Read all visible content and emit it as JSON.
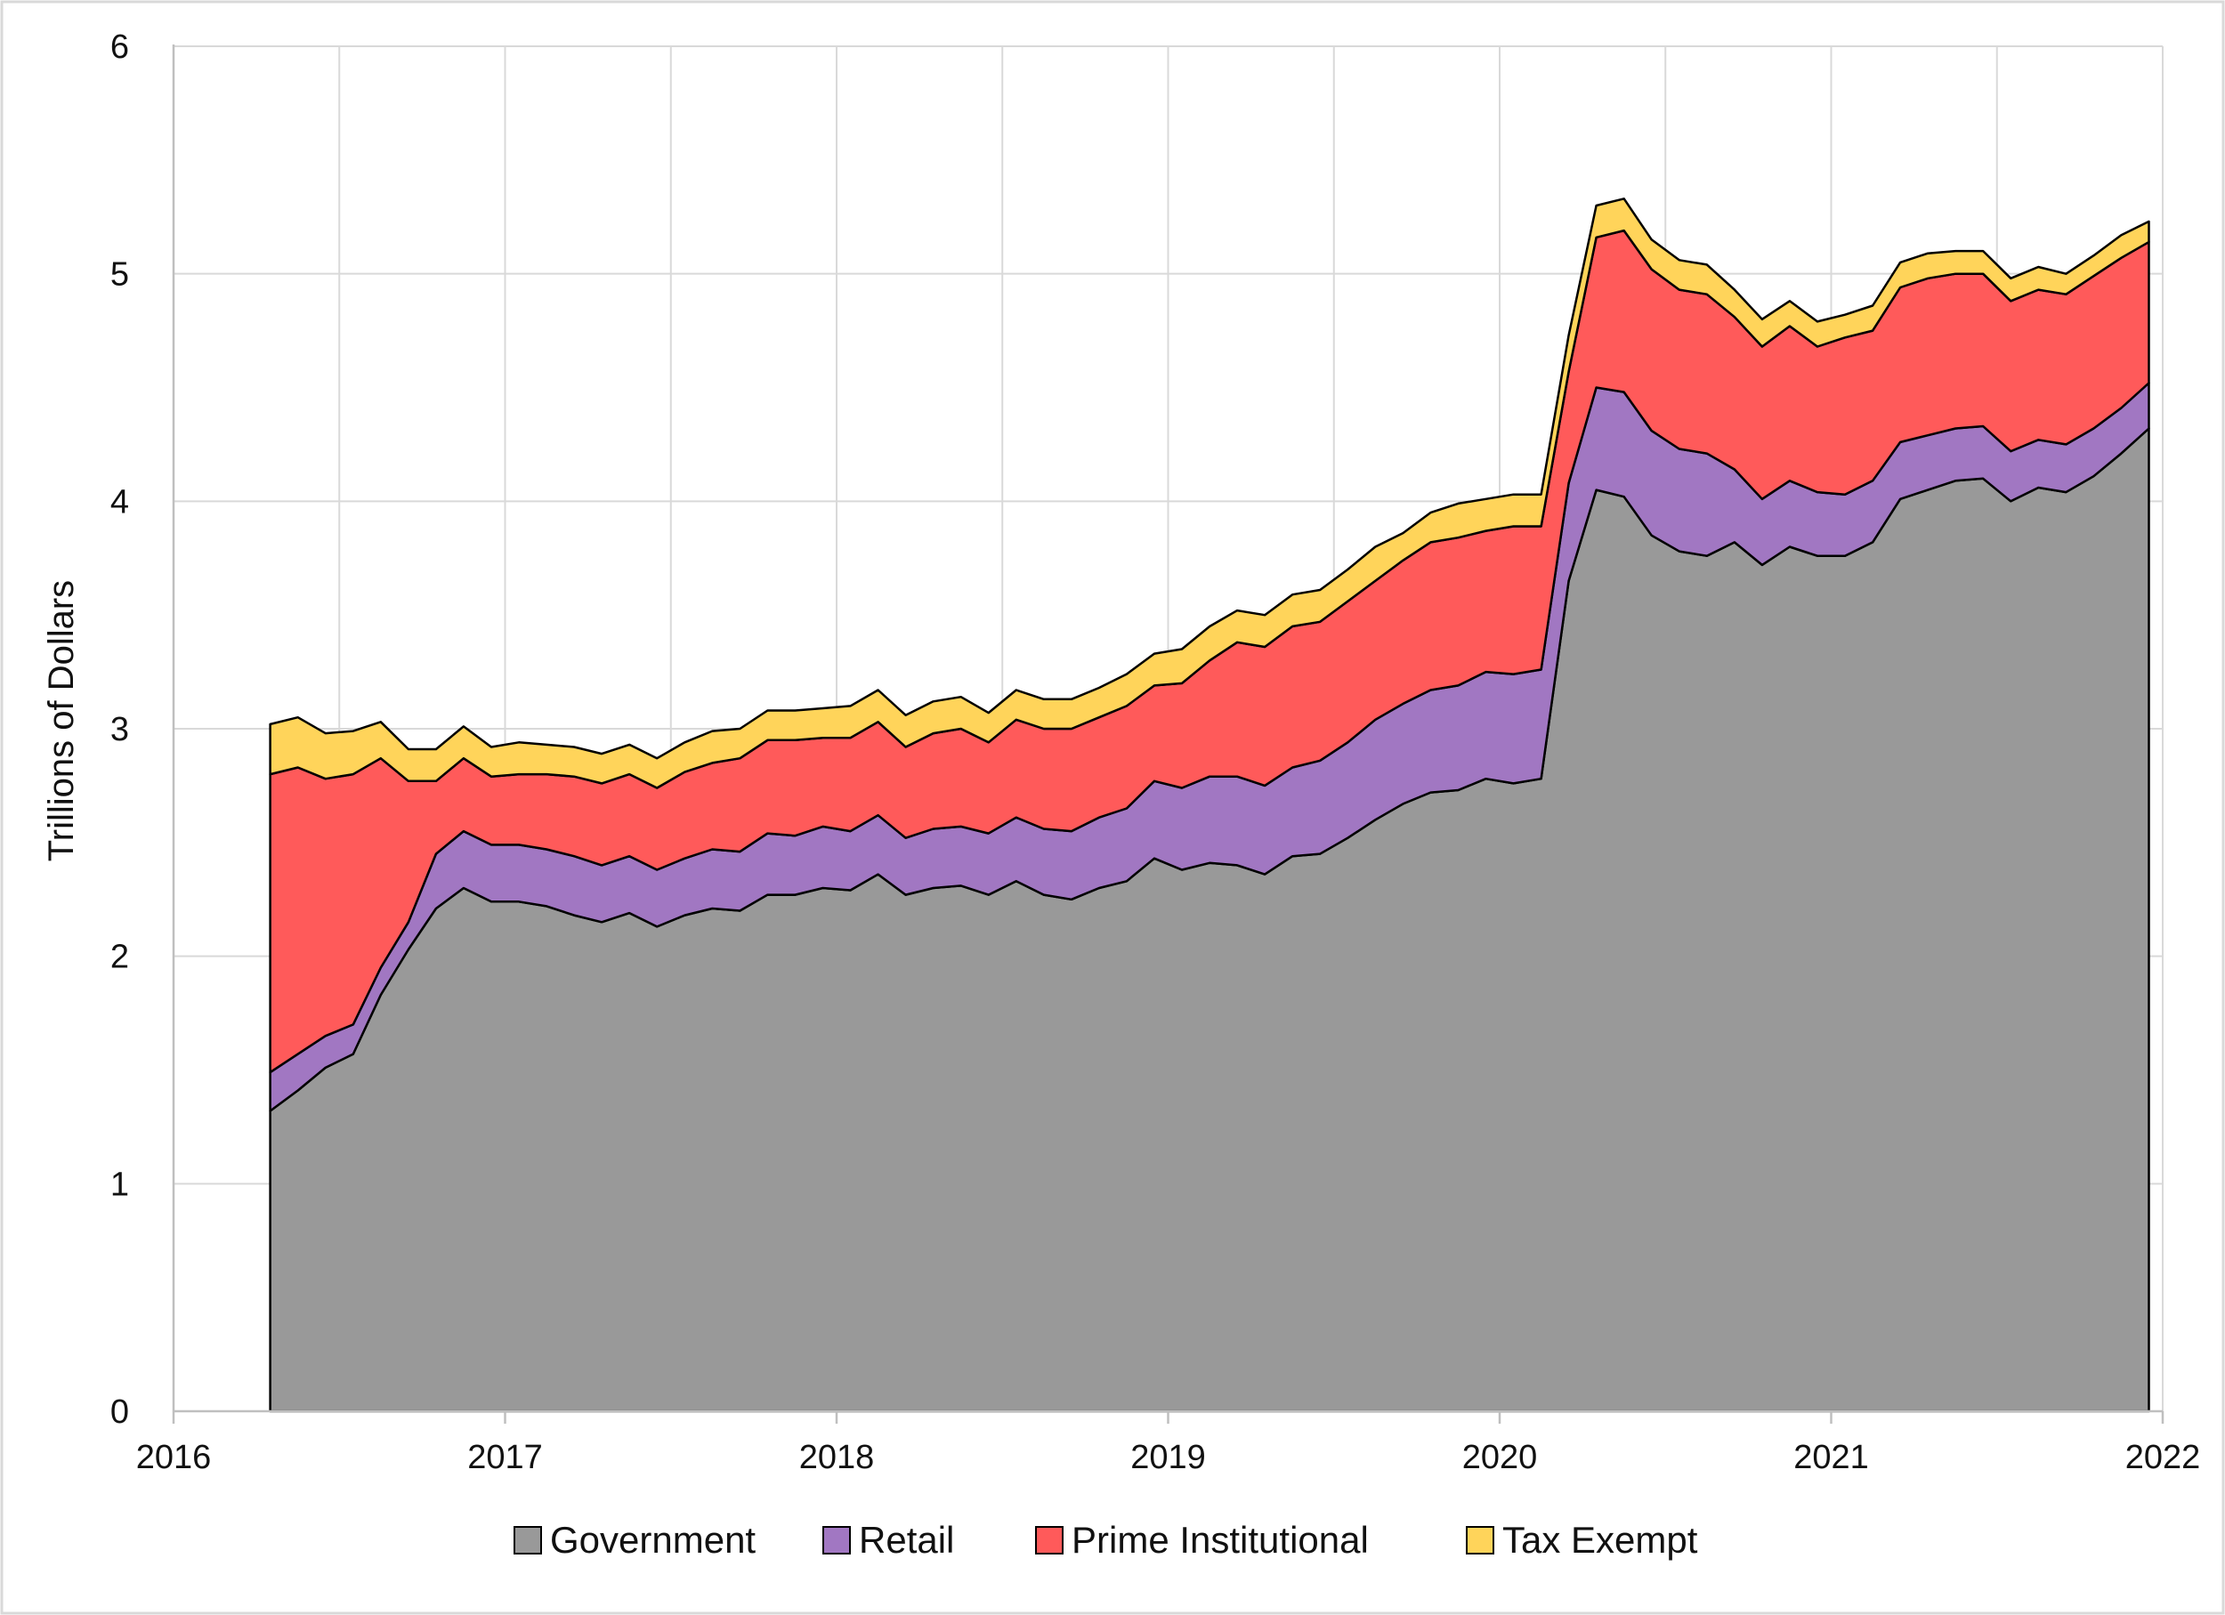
{
  "chart_data": {
    "type": "area",
    "stacked": true,
    "title": "",
    "xlabel": "",
    "ylabel": "Trillions of Dollars",
    "xlim": [
      2016,
      2022
    ],
    "ylim": [
      0,
      6
    ],
    "x_ticks": [
      "2016",
      "2017",
      "2018",
      "2019",
      "2020",
      "2021",
      "2022"
    ],
    "y_ticks": [
      "0",
      "1",
      "2",
      "3",
      "4",
      "5",
      "6"
    ],
    "grid": true,
    "legend_position": "bottom",
    "legend": [
      "Government",
      "Retail",
      "Prime Institutional",
      "Tax Exempt"
    ],
    "colors": {
      "Government": "#999999",
      "Retail": "#a177c2",
      "Prime Institutional": "#ff5a5a",
      "Tax Exempt": "#ffd45a"
    },
    "x": [
      "2016-04",
      "2016-05",
      "2016-06",
      "2016-07",
      "2016-08",
      "2016-09",
      "2016-10",
      "2016-11",
      "2016-12",
      "2017-01",
      "2017-02",
      "2017-03",
      "2017-04",
      "2017-05",
      "2017-06",
      "2017-07",
      "2017-08",
      "2017-09",
      "2017-10",
      "2017-11",
      "2017-12",
      "2018-01",
      "2018-02",
      "2018-03",
      "2018-04",
      "2018-05",
      "2018-06",
      "2018-07",
      "2018-08",
      "2018-09",
      "2018-10",
      "2018-11",
      "2018-12",
      "2019-01",
      "2019-02",
      "2019-03",
      "2019-04",
      "2019-05",
      "2019-06",
      "2019-07",
      "2019-08",
      "2019-09",
      "2019-10",
      "2019-11",
      "2019-12",
      "2020-01",
      "2020-02",
      "2020-03",
      "2020-04",
      "2020-05",
      "2020-06",
      "2020-07",
      "2020-08",
      "2020-09",
      "2020-10",
      "2020-11",
      "2020-12",
      "2021-01",
      "2021-02",
      "2021-03",
      "2021-04",
      "2021-05",
      "2021-06",
      "2021-07",
      "2021-08",
      "2021-09",
      "2021-10",
      "2021-11",
      "2021-12"
    ],
    "series": [
      {
        "name": "Government",
        "values": [
          1.32,
          1.41,
          1.51,
          1.57,
          1.83,
          2.03,
          2.21,
          2.3,
          2.24,
          2.24,
          2.22,
          2.18,
          2.15,
          2.19,
          2.13,
          2.18,
          2.21,
          2.2,
          2.27,
          2.27,
          2.3,
          2.29,
          2.36,
          2.27,
          2.3,
          2.31,
          2.27,
          2.33,
          2.27,
          2.25,
          2.3,
          2.33,
          2.43,
          2.38,
          2.41,
          2.4,
          2.36,
          2.44,
          2.45,
          2.52,
          2.6,
          2.67,
          2.72,
          2.73,
          2.78,
          2.76,
          2.78,
          3.65,
          4.05,
          4.02,
          3.85,
          3.78,
          3.76,
          3.82,
          3.72,
          3.8,
          3.76,
          3.76,
          3.82,
          4.01,
          4.05,
          4.09,
          4.1,
          4.0,
          4.06,
          4.04,
          4.11,
          4.21,
          4.32
        ]
      },
      {
        "name": "Retail",
        "values": [
          0.17,
          0.16,
          0.14,
          0.13,
          0.12,
          0.12,
          0.24,
          0.25,
          0.25,
          0.25,
          0.25,
          0.26,
          0.25,
          0.25,
          0.25,
          0.25,
          0.26,
          0.26,
          0.27,
          0.26,
          0.27,
          0.26,
          0.26,
          0.25,
          0.26,
          0.26,
          0.27,
          0.28,
          0.29,
          0.3,
          0.31,
          0.32,
          0.34,
          0.36,
          0.38,
          0.39,
          0.39,
          0.39,
          0.41,
          0.42,
          0.44,
          0.44,
          0.45,
          0.46,
          0.47,
          0.48,
          0.48,
          0.43,
          0.45,
          0.46,
          0.46,
          0.45,
          0.45,
          0.32,
          0.29,
          0.29,
          0.28,
          0.27,
          0.27,
          0.25,
          0.24,
          0.23,
          0.23,
          0.22,
          0.21,
          0.21,
          0.21,
          0.2,
          0.2
        ]
      },
      {
        "name": "Prime Institutional",
        "values": [
          1.31,
          1.26,
          1.13,
          1.1,
          0.92,
          0.62,
          0.32,
          0.32,
          0.3,
          0.31,
          0.33,
          0.35,
          0.36,
          0.36,
          0.36,
          0.38,
          0.38,
          0.41,
          0.41,
          0.42,
          0.39,
          0.41,
          0.41,
          0.4,
          0.42,
          0.43,
          0.4,
          0.43,
          0.44,
          0.45,
          0.44,
          0.45,
          0.42,
          0.46,
          0.51,
          0.59,
          0.61,
          0.62,
          0.61,
          0.62,
          0.61,
          0.63,
          0.65,
          0.65,
          0.62,
          0.65,
          0.63,
          0.49,
          0.66,
          0.71,
          0.71,
          0.7,
          0.7,
          0.67,
          0.67,
          0.68,
          0.64,
          0.69,
          0.66,
          0.68,
          0.69,
          0.68,
          0.67,
          0.66,
          0.66,
          0.66,
          0.67,
          0.66,
          0.62
        ]
      },
      {
        "name": "Tax Exempt",
        "values": [
          0.22,
          0.22,
          0.2,
          0.19,
          0.16,
          0.14,
          0.14,
          0.14,
          0.13,
          0.14,
          0.13,
          0.13,
          0.13,
          0.13,
          0.13,
          0.13,
          0.14,
          0.13,
          0.13,
          0.13,
          0.13,
          0.14,
          0.14,
          0.14,
          0.14,
          0.14,
          0.13,
          0.13,
          0.13,
          0.13,
          0.13,
          0.14,
          0.14,
          0.15,
          0.15,
          0.14,
          0.14,
          0.14,
          0.14,
          0.14,
          0.15,
          0.12,
          0.13,
          0.15,
          0.14,
          0.14,
          0.14,
          0.16,
          0.14,
          0.14,
          0.13,
          0.13,
          0.13,
          0.12,
          0.12,
          0.11,
          0.11,
          0.1,
          0.11,
          0.11,
          0.11,
          0.1,
          0.1,
          0.1,
          0.1,
          0.09,
          0.09,
          0.1,
          0.09
        ]
      }
    ]
  }
}
